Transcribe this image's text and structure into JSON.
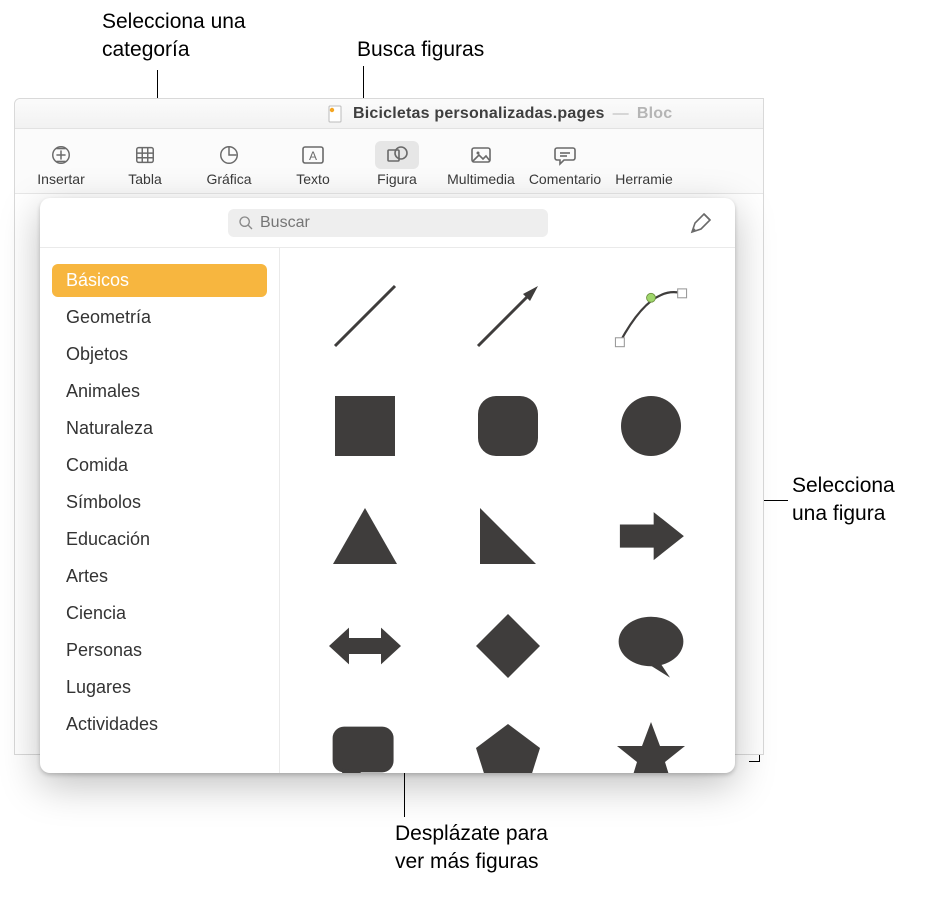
{
  "callouts": {
    "select_category": "Selecciona una\ncategoría",
    "search_shapes": "Busca figuras",
    "select_shape": "Selecciona\nuna figura",
    "scroll_more": "Desplázate para\nver más figuras"
  },
  "titlebar": {
    "doc_name": "Bicicletas personalizadas.pages",
    "separator": "—",
    "trail": "Bloc"
  },
  "toolbar": {
    "items": [
      {
        "id": "insertar",
        "label": "Insertar"
      },
      {
        "id": "tabla",
        "label": "Tabla"
      },
      {
        "id": "grafica",
        "label": "Gráfica"
      },
      {
        "id": "texto",
        "label": "Texto"
      },
      {
        "id": "figura",
        "label": "Figura"
      },
      {
        "id": "multimedia",
        "label": "Multimedia"
      },
      {
        "id": "comentario",
        "label": "Comentario"
      },
      {
        "id": "herramientas",
        "label": "Herramie"
      }
    ],
    "active_id": "figura"
  },
  "popover": {
    "search_placeholder": "Buscar",
    "categories": [
      "Básicos",
      "Geometría",
      "Objetos",
      "Animales",
      "Naturaleza",
      "Comida",
      "Símbolos",
      "Educación",
      "Artes",
      "Ciencia",
      "Personas",
      "Lugares",
      "Actividades"
    ],
    "selected_category_index": 0,
    "shapes": [
      {
        "id": "line",
        "name": "line-shape"
      },
      {
        "id": "arrow-line",
        "name": "arrow-line-shape"
      },
      {
        "id": "curve",
        "name": "curve-shape"
      },
      {
        "id": "square",
        "name": "square-shape"
      },
      {
        "id": "rounded-square",
        "name": "rounded-square-shape"
      },
      {
        "id": "circle",
        "name": "circle-shape"
      },
      {
        "id": "triangle",
        "name": "triangle-shape"
      },
      {
        "id": "right-triangle",
        "name": "right-triangle-shape"
      },
      {
        "id": "arrow-right",
        "name": "arrow-right-shape"
      },
      {
        "id": "arrow-bidir",
        "name": "arrow-bidirectional-shape"
      },
      {
        "id": "diamond",
        "name": "diamond-shape"
      },
      {
        "id": "speech-bubble",
        "name": "speech-bubble-shape"
      },
      {
        "id": "chat-bubble",
        "name": "chat-bubble-shape"
      },
      {
        "id": "pentagon",
        "name": "pentagon-shape"
      },
      {
        "id": "star",
        "name": "star-shape"
      }
    ],
    "colors": {
      "shape_fill": "#3f3d3c",
      "accent": "#f7b63f",
      "curve_handle_fill": "#9fd66b",
      "curve_box_stroke": "#9a9a9a"
    }
  }
}
